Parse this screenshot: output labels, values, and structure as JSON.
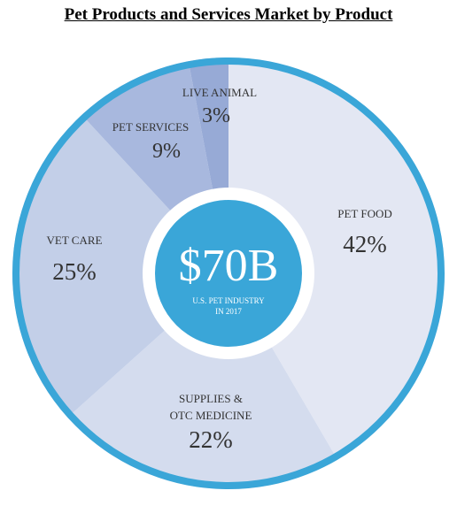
{
  "chart_data": {
    "type": "pie",
    "title": "Pet Products and Services Market by Product",
    "center": {
      "value": "$70B",
      "caption_line1": "U.S. PET INDUSTRY",
      "caption_line2": "IN 2017"
    },
    "slices": [
      {
        "name": "PET FOOD",
        "label_line2": "",
        "percent_label": "42%",
        "value": 42,
        "color": "#e3e7f3"
      },
      {
        "name": "SUPPLIES &",
        "label_line2": "OTC MEDICINE",
        "percent_label": "22%",
        "value": 22,
        "color": "#d4dcee"
      },
      {
        "name": "VET CARE",
        "label_line2": "",
        "percent_label": "25%",
        "value": 25,
        "color": "#c3cfe8"
      },
      {
        "name": "PET SERVICES",
        "label_line2": "",
        "percent_label": "9%",
        "value": 9,
        "color": "#a8b8de"
      },
      {
        "name": "LIVE ANIMAL",
        "label_line2": "",
        "percent_label": "3%",
        "value": 3,
        "color": "#97aad6"
      }
    ],
    "ring_color": "#3aa6d8",
    "center_color": "#3aa6d8"
  }
}
